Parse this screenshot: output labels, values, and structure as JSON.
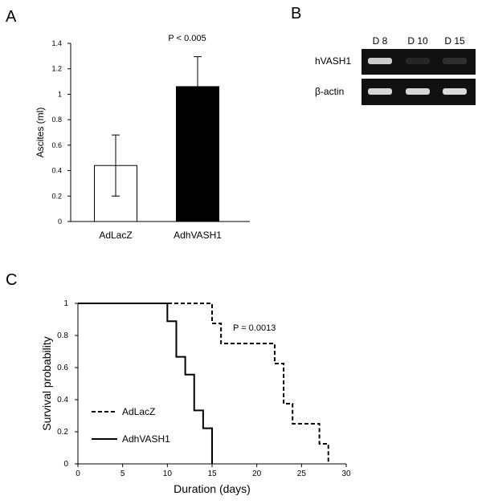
{
  "panels": {
    "a": "A",
    "b": "B",
    "c": "C"
  },
  "chart_data": [
    {
      "type": "bar",
      "categories": [
        "AdLacZ",
        "AdhVASH1"
      ],
      "values": [
        0.44,
        1.06
      ],
      "errors": [
        0.24,
        0.235
      ],
      "bar_colors": [
        "#ffffff",
        "#000000"
      ],
      "ylabel": "Ascites  (ml)",
      "ylim": [
        0,
        1.4
      ],
      "yticks": [
        "0",
        "0.2",
        "0.4",
        "0.6",
        "0.8",
        "1",
        "1.2",
        "1.4"
      ],
      "annotation": "P < 0.005",
      "grid": false
    },
    {
      "type": "gel",
      "lanes": [
        "D 8",
        "D 10",
        "D 15"
      ],
      "rows": [
        {
          "label": "hVASH1",
          "intensity": [
            0.85,
            0.08,
            0.12
          ]
        },
        {
          "label": "β-actin",
          "intensity": [
            0.9,
            0.9,
            0.92
          ]
        }
      ]
    },
    {
      "type": "line",
      "step": true,
      "xlabel": "Duration (days)",
      "ylabel": "Survival probability",
      "xlim": [
        0,
        30
      ],
      "ylim": [
        0,
        1
      ],
      "xticks": [
        "0",
        "5",
        "10",
        "15",
        "20",
        "25",
        "30"
      ],
      "yticks": [
        "0",
        "0.2",
        "0.4",
        "0.6",
        "0.8",
        "1"
      ],
      "annotation": "P = 0.0013",
      "legend_position": "bottom-left",
      "series": [
        {
          "name": "AdLacZ",
          "style": "dashed",
          "x": [
            0,
            15,
            16,
            22,
            23,
            24,
            27,
            28
          ],
          "y": [
            1,
            0.875,
            0.75,
            0.625,
            0.375,
            0.25,
            0.125,
            0
          ]
        },
        {
          "name": "AdhVASH1",
          "style": "solid",
          "x": [
            0,
            10,
            11,
            12,
            13,
            14,
            15
          ],
          "y": [
            1,
            0.889,
            0.667,
            0.556,
            0.333,
            0.222,
            0
          ]
        }
      ]
    }
  ]
}
